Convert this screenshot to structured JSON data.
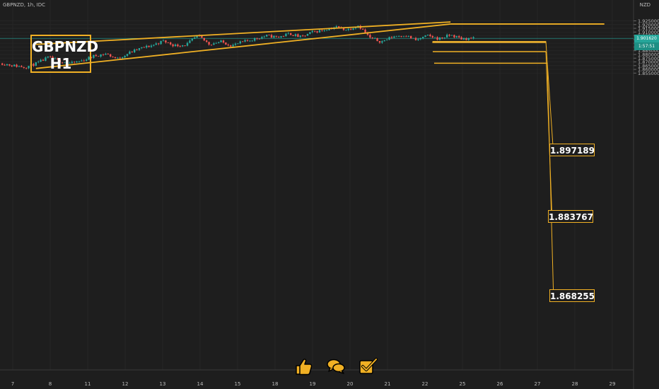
{
  "header": {
    "symbol_line": "GBPNZD, 1h, IDC",
    "currency": "NZD"
  },
  "badge": {
    "line1": "GBPNZD",
    "line2": "H1"
  },
  "price_labels": {
    "current": "1.901620",
    "countdown": "1:57:51"
  },
  "levels": [
    {
      "label": "1.897189",
      "value": 1.897189
    },
    {
      "label": "1.883767",
      "value": 1.883767
    },
    {
      "label": "1.868255",
      "value": 1.868255
    }
  ],
  "icons": [
    "thumbs-up-icon",
    "chat-bubbles-icon",
    "checkbox-icon"
  ],
  "colors": {
    "background": "#1e1e1e",
    "bull": "#26a69a",
    "bear": "#ef5350",
    "trendline": "#f0b024",
    "price_line": "#26a69a",
    "zone": "#8a8a8a"
  },
  "chart_data": {
    "type": "candlestick",
    "title": "GBPNZD, 1h, IDC",
    "y_ticks": [
      "1.925000",
      "1.920000",
      "1.915000",
      "1.910000",
      "1.905000",
      "1.900000",
      "1.895000",
      "1.890000",
      "1.885000",
      "1.880000",
      "1.875000",
      "1.870000",
      "1.865000",
      "1.860000",
      "1.855000"
    ],
    "x_ticks": [
      "7",
      "8",
      "11",
      "12",
      "13",
      "14",
      "15",
      "18",
      "19",
      "20",
      "21",
      "22",
      "25",
      "26",
      "27",
      "28",
      "29"
    ],
    "ylim": [
      1.853,
      1.926
    ],
    "price_path": [
      [
        0,
        1.868
      ],
      [
        1,
        1.865
      ],
      [
        2,
        1.863
      ],
      [
        3,
        1.868
      ],
      [
        4,
        1.876
      ],
      [
        5,
        1.871
      ],
      [
        6,
        1.868
      ],
      [
        7,
        1.872
      ],
      [
        8,
        1.878
      ],
      [
        9,
        1.881
      ],
      [
        10,
        1.874
      ],
      [
        11,
        1.882
      ],
      [
        12,
        1.888
      ],
      [
        13,
        1.892
      ],
      [
        14,
        1.898
      ],
      [
        15,
        1.892
      ],
      [
        16,
        1.893
      ],
      [
        17,
        1.905
      ],
      [
        18,
        1.894
      ],
      [
        19,
        1.897
      ],
      [
        20,
        1.892
      ],
      [
        21,
        1.897
      ],
      [
        22,
        1.901
      ],
      [
        23,
        1.905
      ],
      [
        24,
        1.903
      ],
      [
        25,
        1.908
      ],
      [
        26,
        1.903
      ],
      [
        27,
        1.91
      ],
      [
        28,
        1.913
      ],
      [
        29,
        1.917
      ],
      [
        30,
        1.913
      ],
      [
        31,
        1.919
      ],
      [
        32,
        1.902
      ],
      [
        33,
        1.897
      ],
      [
        34,
        1.904
      ],
      [
        35,
        1.906
      ],
      [
        36,
        1.899
      ],
      [
        37,
        1.905
      ],
      [
        38,
        1.901
      ],
      [
        39,
        1.906
      ],
      [
        40,
        1.901
      ],
      [
        41,
        1.9016
      ]
    ],
    "trendlines": [
      {
        "x0": 0.55,
        "y0": 1.8935,
        "x1": 26.55,
        "y1": 1.9235
      },
      {
        "x0": 0.55,
        "y0": 1.8612,
        "x1": 26.55,
        "y1": 1.9208
      },
      {
        "x0": 26.55,
        "y0": 1.9208,
        "x1": 36.2,
        "y1": 1.9208
      }
    ],
    "zone": {
      "top": 1.8972,
      "bottom": 1.8958
    },
    "current_price": 1.90162
  }
}
